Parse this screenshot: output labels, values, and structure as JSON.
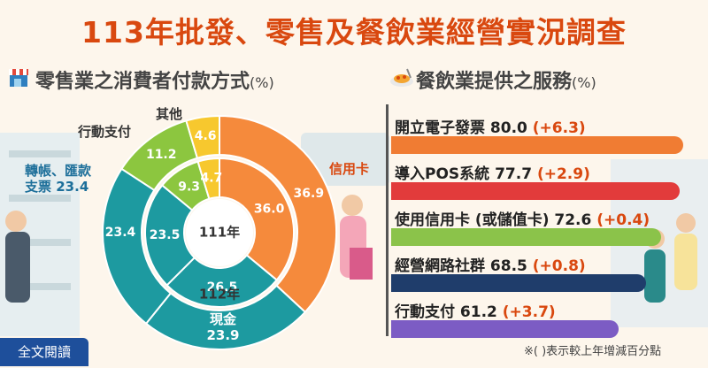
{
  "title": "113年批發、零售及餐飲業經營實況調查",
  "left_subtitle": "零售業之消費者付款方式",
  "left_unit": "(%)",
  "right_subtitle": "餐飲業提供之服務",
  "right_unit": "(%)",
  "footnote": "※(  )表示較上年增減百分點",
  "read_button": "全文閱讀",
  "colors": {
    "credit": "#f58a3c",
    "cash": "#1d9aa0",
    "transfer": "#1d9aa0",
    "mobile": "#8cc63f",
    "other": "#f7c82e",
    "bar_orange": "#f07c33",
    "bar_red": "#e23b3b",
    "bar_green": "#8bc34a",
    "bar_navy": "#1f3d6b",
    "bar_purple": "#7c5cc4"
  },
  "chart_data": [
    {
      "type": "pie",
      "name": "donut",
      "inner_year": "111年",
      "outer_year": "112年",
      "categories": [
        "信用卡",
        "現金",
        "轉帳、匯款支票",
        "行動支付",
        "其他"
      ],
      "series": [
        {
          "name": "111年",
          "values": [
            36.0,
            26.5,
            23.5,
            9.3,
            4.7
          ]
        },
        {
          "name": "112年",
          "values": [
            36.9,
            23.9,
            23.4,
            11.2,
            4.6
          ]
        }
      ],
      "labels": {
        "credit": "信用卡",
        "cash": "現金",
        "transfer_1": "轉帳、匯款",
        "transfer_2": "支票",
        "mobile": "行動支付",
        "other": "其他"
      }
    },
    {
      "type": "bar",
      "categories": [
        "開立電子發票",
        "導入POS系統",
        "使用信用卡 (或儲值卡)",
        "經營網路社群",
        "行動支付"
      ],
      "values": [
        80.0,
        77.7,
        72.6,
        68.5,
        61.2
      ],
      "changes": [
        "(+6.3)",
        "(+2.9)",
        "(+0.4)",
        "(+0.8)",
        "(+3.7)"
      ],
      "value_labels": [
        "80.0",
        "77.7",
        "72.6",
        "68.5",
        "61.2"
      ]
    }
  ]
}
